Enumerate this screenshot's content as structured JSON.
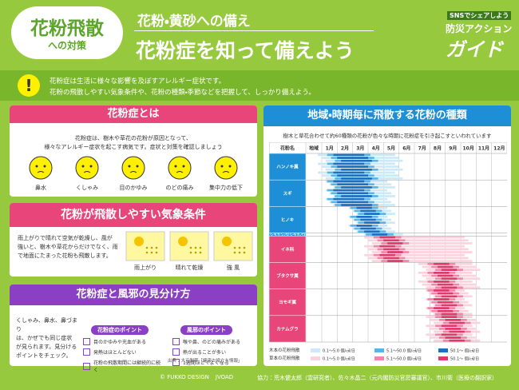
{
  "header": {
    "badge_title": "花粉飛散",
    "badge_sub": "への対策",
    "kicker": "花粉・黄砂への備え",
    "title": "花粉症を知って備えよう",
    "logo_top": "SNSでシェアしよう",
    "logo_mid": "防災アクション",
    "logo_main": "ガイド"
  },
  "intro": {
    "icon": "!",
    "lines": [
      "花粉症は生活に様々な影響を及ぼすアレルギー症状です。",
      "花粉の飛散しやすい気象条件や、花粉の種類・季節などを把握して、しっかり備えよう。"
    ]
  },
  "about": {
    "heading": "花粉症とは",
    "lines": [
      "花粉症は、樹木や草花の花粉が原因となって、",
      "様々なアレルギー症状を起こす病気です。症状と対策を確認しましょう"
    ],
    "symptoms": [
      "鼻水",
      "くしゃみ",
      "目のかゆみ",
      "のどの痛み",
      "集中力の低下"
    ]
  },
  "weather": {
    "heading": "花粉が飛散しやすい気象条件",
    "lines": [
      "雨上がりで晴れて空気が乾燥し、風が",
      "強いと、樹木や草花からだけでなく、雨",
      "で地面にたまった花粉も飛散します。"
    ],
    "conditions": [
      "雨上がり",
      "晴れて乾燥",
      "強 風"
    ]
  },
  "cold": {
    "heading": "花粉症と風邪の見分け方",
    "lines": [
      "くしゃみ、鼻水、鼻づまり",
      "は、かぜでも同じ症状",
      "が見られます。見分ける",
      "ポイントをチェック。"
    ],
    "pollen_box": {
      "title": "花粉症のポイント",
      "items": [
        "目のかゆみや充血がある",
        "発熱はほとんどない",
        "花粉の飛散期間には継続的に続く"
      ]
    },
    "cold_box": {
      "title": "風邪のポイント",
      "items": [
        "喉や鼻、のどの痛みがある",
        "熱が出ることが多い",
        "1週間ほどでよくなる"
      ]
    },
    "source": "出典：大正製薬「健康お役立ち情報」"
  },
  "calendar": {
    "heading": "地域・時期毎に飛散する花粉の種類",
    "subtitle": "樹木と草花合わせて約60種類の花粉が色々な時期に花粉症を引き起こすといわれています",
    "columns": [
      "花粉名",
      "地域",
      "1月",
      "2月",
      "3月",
      "4月",
      "5月",
      "6月",
      "7月",
      "8月",
      "9月",
      "10月",
      "11月",
      "12月"
    ],
    "pollens": [
      "ハンノキ属",
      "スギ",
      "ヒノキ",
      "シラカンバ(シラカバ)",
      "イネ科",
      "ブタクサ属",
      "ヨモギ属",
      "カナムグラ"
    ],
    "legend": {
      "woody": "木本の花粉飛散",
      "herb": "草本の花粉飛散",
      "ranges": [
        "0.1〜5.0 個/㎠/日",
        "5.1〜50.0 個/㎠/日",
        "50.1〜 個/㎠/日"
      ]
    }
  },
  "footer": {
    "logos": [
      "© FUKKO DESIGN",
      "JVOAD"
    ],
    "partner": "協力：荒木健太郎（雲研究者）、佐々木晶二（元内閣防災官房審議官）、市川衛（医療の翻訳家）"
  }
}
